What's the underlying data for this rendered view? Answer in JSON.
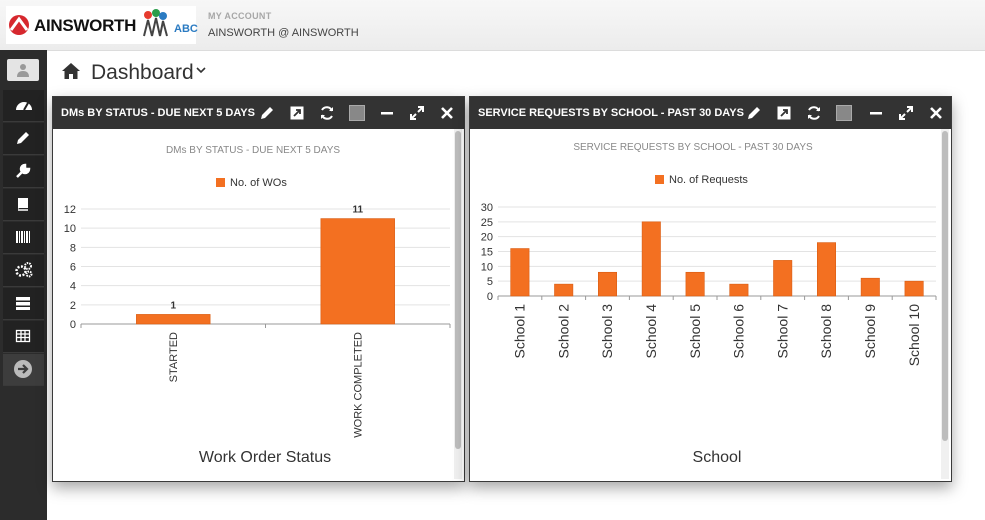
{
  "header": {
    "logo_text": "AINSWORTH",
    "logo_badge": "ABC",
    "account_label": "MY ACCOUNT",
    "account_value": "AINSWORTH @ AINSWORTH"
  },
  "sidebar": {
    "items": [
      {
        "icon": "user-icon"
      },
      {
        "icon": "dashboard-gauge-icon"
      },
      {
        "icon": "pencil-icon"
      },
      {
        "icon": "wrench-icon"
      },
      {
        "icon": "book-icon"
      },
      {
        "icon": "barcode-icon"
      },
      {
        "icon": "cogs-icon"
      },
      {
        "icon": "server-icon"
      },
      {
        "icon": "table-icon"
      },
      {
        "icon": "arrow-right-circle-icon"
      }
    ]
  },
  "page": {
    "title": "Dashboard"
  },
  "colors": {
    "bar": "#f37021",
    "header_bg": "#333333",
    "sidebar_bg": "#2c2c2c"
  },
  "widgets": [
    {
      "header_title": "DMs BY STATUS - DUE NEXT 5 DAYS",
      "chart_title": "DMs BY STATUS - DUE NEXT 5 DAYS",
      "legend": "No. of WOs",
      "xlabel": "Work Order Status"
    },
    {
      "header_title": "SERVICE REQUESTS BY SCHOOL - PAST 30 DAYS",
      "chart_title": "SERVICE REQUESTS BY SCHOOL - PAST 30 DAYS",
      "legend": "No. of Requests",
      "xlabel": "School"
    }
  ],
  "chart_data": [
    {
      "type": "bar",
      "title": "DMs BY STATUS - DUE NEXT 5 DAYS",
      "xlabel": "Work Order Status",
      "ylabel": "",
      "categories": [
        "STARTED",
        "WORK COMPLETED"
      ],
      "series": [
        {
          "name": "No. of WOs",
          "values": [
            1,
            11
          ]
        }
      ],
      "data_labels": [
        "1",
        "11"
      ],
      "ylim": [
        0,
        12
      ],
      "yticks": [
        0,
        2,
        4,
        6,
        8,
        10,
        12
      ],
      "grid": true,
      "legend": "top-center"
    },
    {
      "type": "bar",
      "title": "SERVICE REQUESTS BY SCHOOL - PAST 30 DAYS",
      "xlabel": "School",
      "ylabel": "",
      "categories": [
        "School 1",
        "School 2",
        "School 3",
        "School 4",
        "School 5",
        "School 6",
        "School 7",
        "School 8",
        "School 9",
        "School 10"
      ],
      "series": [
        {
          "name": "No. of Requests",
          "values": [
            16,
            4,
            8,
            25,
            8,
            4,
            12,
            18,
            6,
            5
          ]
        }
      ],
      "ylim": [
        0,
        30
      ],
      "yticks": [
        0,
        5,
        10,
        15,
        20,
        25,
        30
      ],
      "grid": true,
      "legend": "top-center"
    }
  ]
}
